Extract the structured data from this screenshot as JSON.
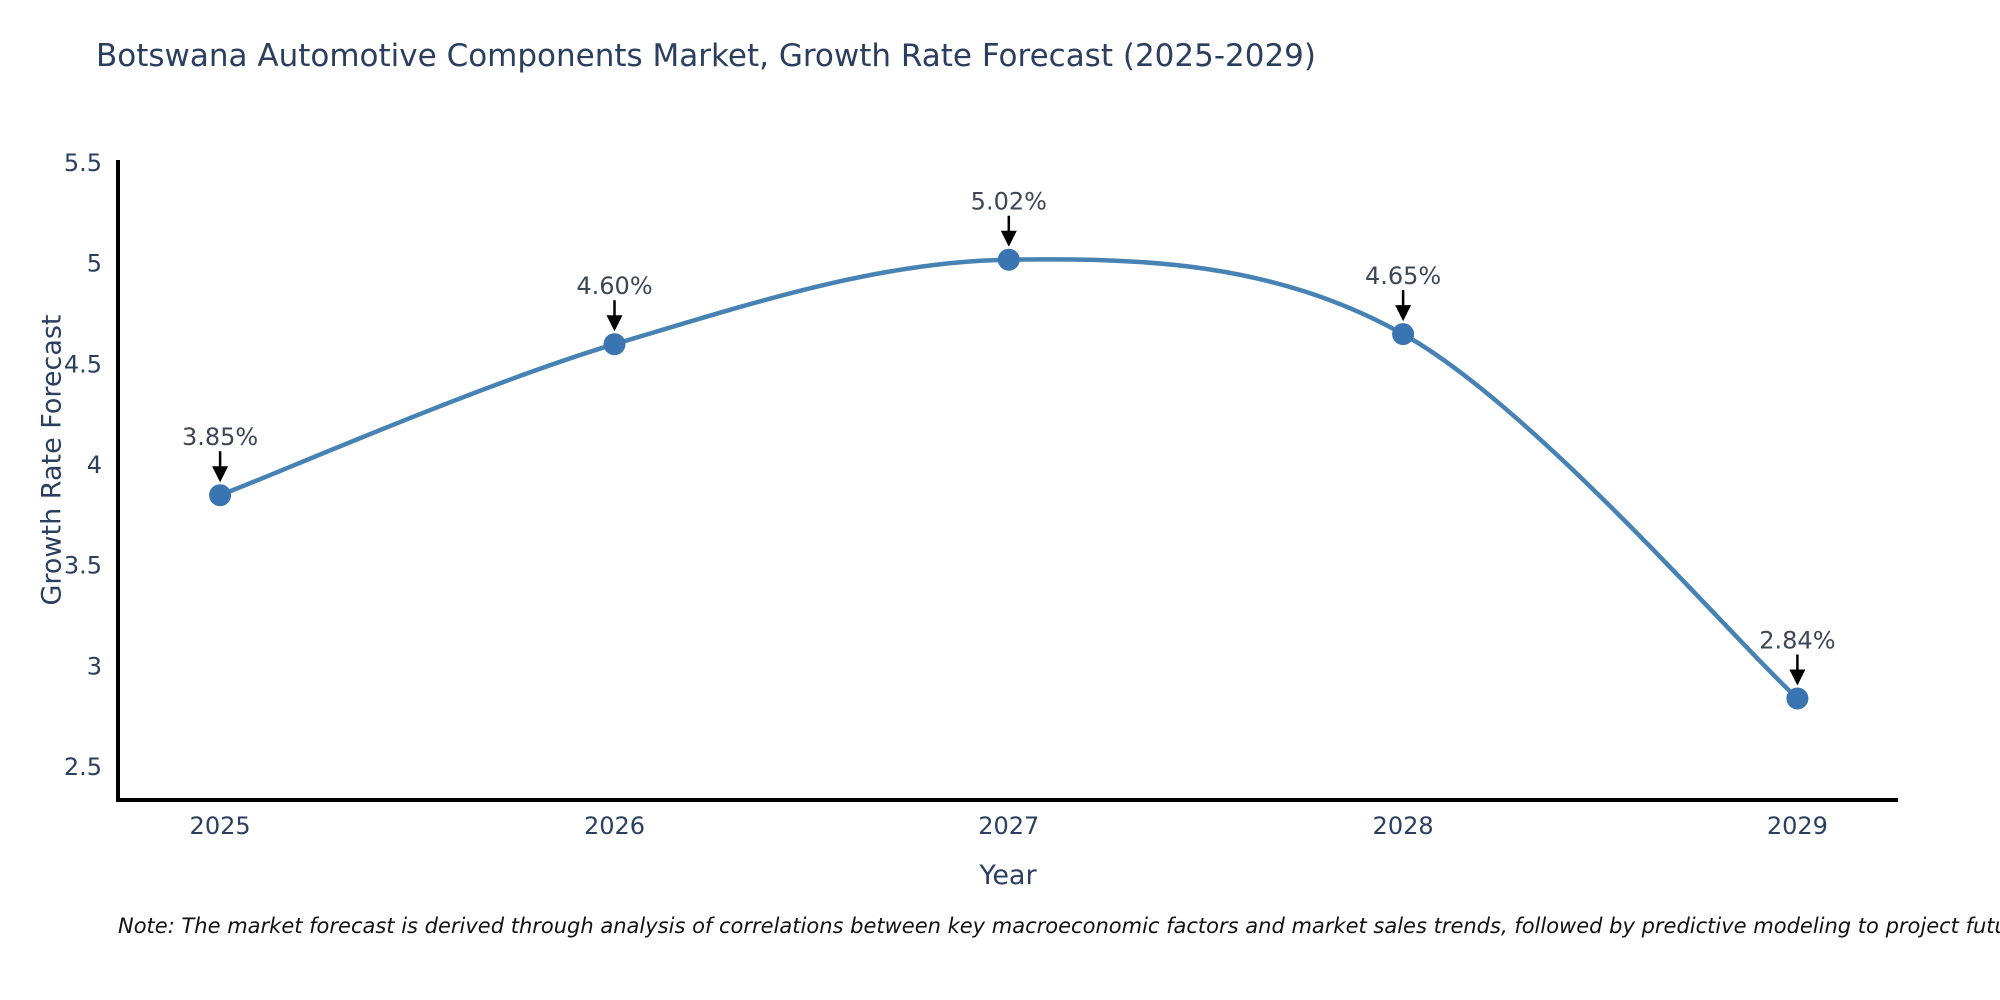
{
  "title": "Botswana Automotive Components Market, Growth Rate Forecast (2025-2029)",
  "note": "Note: The market forecast is derived through analysis of correlations between key macroeconomic factors and market sales trends, followed by predictive modeling to project future sales",
  "chart_data": {
    "type": "line",
    "title": "Botswana Automotive Components Market, Growth Rate Forecast (2025-2029)",
    "x": [
      2025,
      2026,
      2027,
      2028,
      2029
    ],
    "values": [
      3.85,
      4.6,
      5.02,
      4.65,
      2.84
    ],
    "point_labels": [
      "3.85%",
      "4.60%",
      "5.02%",
      "4.65%",
      "2.84%"
    ],
    "xlabel": "Year",
    "ylabel": "Growth Rate Forecast",
    "x_ticks": [
      2025,
      2026,
      2027,
      2028,
      2029
    ],
    "y_ticks": [
      5.5,
      5,
      4.5,
      4,
      3.5,
      3,
      2.5
    ],
    "xlim": [
      2024.741,
      2029.255
    ],
    "ylim": [
      2.336,
      5.515
    ],
    "grid": false,
    "legend": "none",
    "line_shape": "spline",
    "annotation_arrows": true,
    "colors": {
      "line": "#4682b4",
      "marker": "#3a74b1",
      "axis": "#000000",
      "tick_text": "#2a3f5f",
      "annotation_text": "#3c4656",
      "arrow": "#000000",
      "background": "#ffffff"
    }
  }
}
